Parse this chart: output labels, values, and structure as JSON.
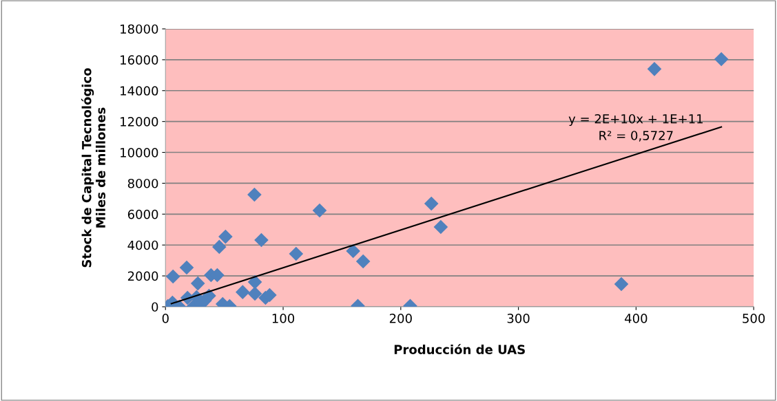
{
  "chart_data": {
    "type": "scatter",
    "xlabel": "Producción de UAS",
    "ylabel": "Stock de Capital Tecnológico\nMiles de millones",
    "xlim": [
      0,
      500
    ],
    "xticks": [
      0,
      100,
      200,
      300,
      400,
      500
    ],
    "ylim": [
      0,
      18000
    ],
    "yticks": [
      0,
      2000,
      4000,
      6000,
      8000,
      10000,
      12000,
      14000,
      16000,
      18000
    ],
    "grid": "y",
    "marker": "diamond",
    "series": [
      {
        "color": "#4f81bd",
        "x": [
          2,
          5.9,
          6.4,
          11.7,
          17.6,
          18,
          18.7,
          23.4,
          26.4,
          27.5,
          30.5,
          33.4,
          37,
          38.7,
          44,
          45.7,
          48.6,
          51,
          54.5,
          65.6,
          75.6,
          76,
          76,
          81.5,
          85,
          88.5,
          111,
          131,
          159.5,
          163.5,
          168,
          208,
          226,
          234,
          387.5,
          415.6,
          472.5
        ],
        "values": [
          40,
          270,
          1960,
          0,
          null,
          2540,
          580,
          0,
          620,
          1510,
          180,
          400,
          710,
          2050,
          2050,
          3880,
          180,
          4540,
          40,
          950,
          7260,
          850,
          1600,
          4320,
          580,
          760,
          3430,
          6240,
          3610,
          50,
          2940,
          50,
          6680,
          5170,
          1470,
          15400,
          16040
        ]
      },
      {
        "type": "line",
        "color": "#000000",
        "marker": "none",
        "x": [
          5,
          472.5
        ],
        "values": [
          200,
          11650
        ]
      }
    ],
    "annotations": [
      "y = 2E+10x + 1E+11",
      "R² = 0,5727"
    ]
  }
}
